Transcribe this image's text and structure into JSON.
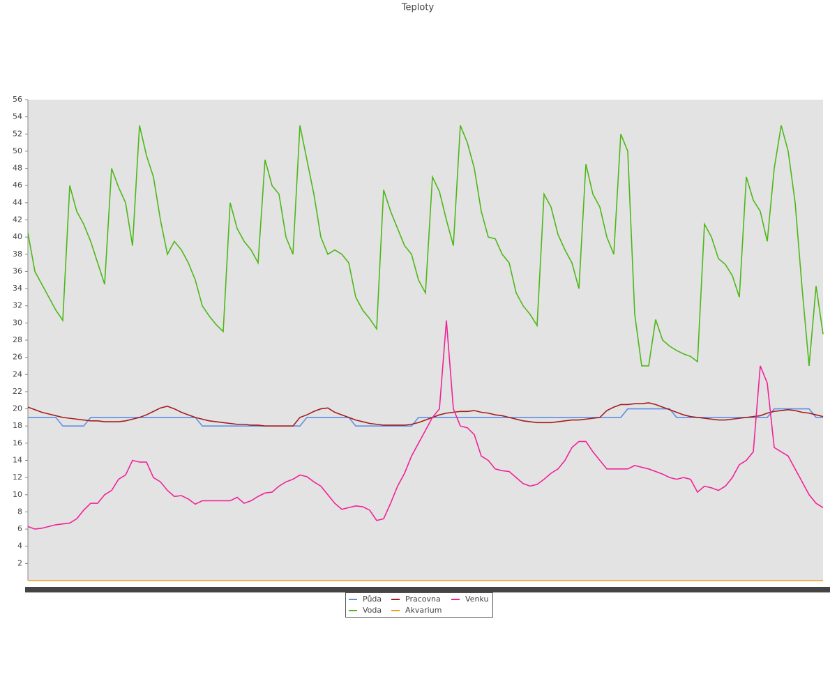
{
  "chart_data": {
    "type": "line",
    "title": "Teploty",
    "categories": [
      null,
      null,
      null,
      null,
      null,
      null,
      null,
      null,
      null,
      null,
      null,
      null,
      null,
      null,
      null,
      null,
      null,
      null,
      null,
      null,
      null,
      null,
      null,
      null,
      null,
      null,
      null,
      null,
      null,
      null,
      null,
      null,
      null,
      null,
      null,
      null,
      null,
      null,
      null,
      null,
      null,
      null,
      null,
      null,
      null,
      null,
      null,
      null,
      null,
      null,
      null,
      null,
      null,
      null,
      null,
      null,
      null,
      null,
      null,
      null,
      null,
      null,
      null,
      null,
      null,
      null,
      null,
      null,
      null,
      null,
      null,
      null,
      null,
      null,
      null,
      null,
      null,
      null,
      null,
      null,
      null,
      null,
      null,
      null,
      null,
      null,
      null,
      null,
      null,
      null,
      null,
      null,
      null,
      null,
      null,
      null,
      null,
      null,
      null,
      null,
      null,
      null,
      null,
      null,
      null,
      null,
      null,
      null,
      null,
      null,
      null,
      null,
      null,
      null,
      null
    ],
    "ylim": [
      0,
      56
    ],
    "yticks": [
      2,
      4,
      6,
      8,
      10,
      12,
      14,
      16,
      18,
      20,
      22,
      24,
      26,
      28,
      30,
      32,
      34,
      36,
      38,
      40,
      42,
      44,
      46,
      48,
      50,
      52,
      54,
      56
    ],
    "series": [
      {
        "name": "Půda",
        "color": "#5b8fe8",
        "values": [
          19,
          19,
          19,
          19,
          19,
          18,
          18,
          18,
          18,
          19,
          19,
          19,
          19,
          19,
          19,
          19,
          19,
          19,
          19,
          19,
          19,
          19,
          19,
          19,
          19,
          18,
          18,
          18,
          18,
          18,
          18,
          18,
          18,
          18,
          18,
          18,
          18,
          18,
          18,
          18,
          19,
          19,
          19,
          19,
          19,
          19,
          19,
          18,
          18,
          18,
          18,
          18,
          18,
          18,
          18,
          18,
          19,
          19,
          19,
          19,
          19,
          19,
          19,
          19,
          19,
          19,
          19,
          19,
          19,
          19,
          19,
          19,
          19,
          19,
          19,
          19,
          19,
          19,
          19,
          19,
          19,
          19,
          19,
          19,
          19,
          19,
          20,
          20,
          20,
          20,
          20,
          20,
          20,
          19,
          19,
          19,
          19,
          19,
          19,
          19,
          19,
          19,
          19,
          19,
          19,
          19,
          19,
          20,
          20,
          20,
          20,
          20,
          20,
          19,
          19
        ]
      },
      {
        "name": "Pracovna",
        "color": "#a51c1c",
        "values": [
          20.2,
          19.9,
          19.6,
          19.4,
          19.2,
          19,
          18.9,
          18.8,
          18.7,
          18.6,
          18.6,
          18.5,
          18.5,
          18.5,
          18.6,
          18.8,
          19,
          19.3,
          19.7,
          20.1,
          20.3,
          20,
          19.6,
          19.3,
          19,
          18.8,
          18.6,
          18.5,
          18.4,
          18.3,
          18.2,
          18.2,
          18.1,
          18.1,
          18,
          18,
          18,
          18,
          18,
          19,
          19.3,
          19.7,
          20,
          20.1,
          19.6,
          19.3,
          19,
          18.7,
          18.5,
          18.3,
          18.2,
          18.1,
          18.1,
          18.1,
          18.1,
          18.2,
          18.4,
          18.7,
          19,
          19.3,
          19.5,
          19.6,
          19.7,
          19.7,
          19.8,
          19.6,
          19.5,
          19.3,
          19.2,
          19,
          18.8,
          18.6,
          18.5,
          18.4,
          18.4,
          18.4,
          18.5,
          18.6,
          18.7,
          18.7,
          18.8,
          18.9,
          19,
          19.8,
          20.2,
          20.5,
          20.5,
          20.6,
          20.6,
          20.7,
          20.5,
          20.2,
          19.9,
          19.6,
          19.3,
          19.1,
          19,
          18.9,
          18.8,
          18.7,
          18.7,
          18.8,
          18.9,
          19,
          19.1,
          19.2,
          19.5,
          19.7,
          19.8,
          19.9,
          19.8,
          19.6,
          19.5,
          19.3,
          19.1
        ]
      },
      {
        "name": "Venku",
        "color": "#f0229a",
        "values": [
          6.3,
          6,
          6.1,
          6.3,
          6.5,
          6.6,
          6.7,
          7.2,
          8.2,
          9,
          9,
          10,
          10.5,
          11.8,
          12.3,
          14,
          13.8,
          13.8,
          12,
          11.5,
          10.5,
          9.8,
          9.9,
          9.5,
          8.9,
          9.3,
          9.3,
          9.3,
          9.3,
          9.3,
          9.7,
          9,
          9.3,
          9.8,
          10.2,
          10.3,
          11,
          11.5,
          11.8,
          12.3,
          12.1,
          11.5,
          11,
          10,
          9,
          8.3,
          8.5,
          8.7,
          8.6,
          8.2,
          7,
          7.2,
          9,
          11,
          12.5,
          14.5,
          16,
          17.5,
          19,
          20,
          30.3,
          20,
          18,
          17.8,
          17,
          14.5,
          14,
          13,
          12.8,
          12.7,
          12,
          11.3,
          11,
          11.2,
          11.8,
          12.5,
          13,
          14,
          15.5,
          16.2,
          16.2,
          15,
          14,
          13,
          13,
          13,
          13,
          13.4,
          13.2,
          13,
          12.7,
          12.4,
          12,
          11.8,
          12,
          11.8,
          10.3,
          11,
          10.8,
          10.5,
          11,
          12,
          13.5,
          14,
          15,
          25,
          23,
          15.5,
          15,
          14.5,
          13,
          11.5,
          10,
          9,
          8.5
        ]
      },
      {
        "name": "Voda",
        "color": "#4cb817",
        "values": [
          40.5,
          36,
          34.5,
          33,
          31.5,
          30.3,
          46,
          43,
          41.5,
          39.5,
          37,
          34.5,
          48,
          45.8,
          44,
          39,
          53,
          49.5,
          47,
          42,
          38,
          39.5,
          38.5,
          37,
          35,
          32,
          30.8,
          29.8,
          29,
          44,
          41,
          39.5,
          38.5,
          37,
          49,
          46,
          45,
          40,
          38,
          53,
          49,
          45,
          40,
          38,
          38.5,
          38,
          37,
          33,
          31.5,
          30.5,
          29.3,
          45.5,
          43,
          41,
          39,
          38,
          35,
          33.5,
          47,
          45.3,
          42,
          39,
          53,
          51,
          48,
          43,
          40,
          39.8,
          38,
          37,
          33.5,
          32,
          31,
          29.7,
          45,
          43.5,
          40.3,
          38.5,
          37,
          34,
          48.5,
          45,
          43.5,
          40,
          38,
          52,
          50,
          31,
          25,
          25,
          30.4,
          28,
          27.3,
          26.8,
          26.4,
          26.1,
          25.5,
          41.5,
          40,
          37.5,
          36.8,
          35.5,
          33,
          47,
          44.3,
          43,
          39.5,
          48,
          53,
          50,
          44,
          34,
          25,
          34.3,
          28.7
        ]
      },
      {
        "name": "Akvarium",
        "color": "#e8a020",
        "values": [
          0,
          0,
          0,
          0,
          0,
          0,
          0,
          0,
          0,
          0,
          0,
          0,
          0,
          0,
          0,
          0,
          0,
          0,
          0,
          0,
          0,
          0,
          0,
          0,
          0,
          0,
          0,
          0,
          0,
          0,
          0,
          0,
          0,
          0,
          0,
          0,
          0,
          0,
          0,
          0,
          0,
          0,
          0,
          0,
          0,
          0,
          0,
          0,
          0,
          0,
          0,
          0,
          0,
          0,
          0,
          0,
          0,
          0,
          0,
          0,
          0,
          0,
          0,
          0,
          0,
          0,
          0,
          0,
          0,
          0,
          0,
          0,
          0,
          0,
          0,
          0,
          0,
          0,
          0,
          0,
          0,
          0,
          0,
          0,
          0,
          0,
          0,
          0,
          0,
          0,
          0,
          0,
          0,
          0,
          0,
          0,
          0,
          0,
          0,
          0,
          0,
          0,
          0,
          0,
          0,
          0,
          0,
          0,
          0,
          0,
          0,
          0,
          0,
          0,
          0
        ]
      }
    ]
  }
}
